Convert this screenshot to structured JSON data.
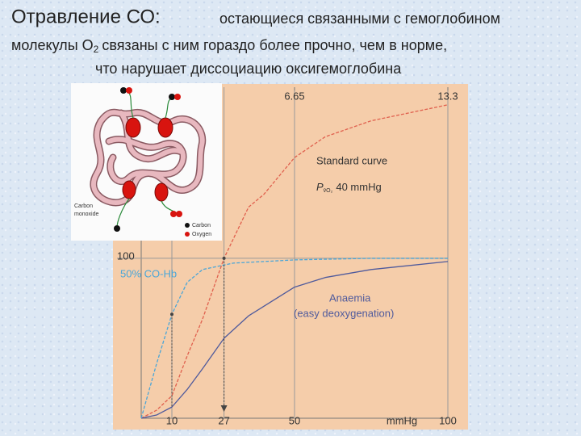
{
  "slide": {
    "heading": "Отравление СО:",
    "line1": "остающиеся связанными с гемоглобином",
    "line2a": "молекулы O",
    "line2sub": "2",
    "line2b": "связаны с ним гораздо более прочно, чем в норме,",
    "line3": "что нарушает диссоциацию оксигемоглобина"
  },
  "inset": {
    "label_co_1": "Carbon",
    "label_co_2": "monoxide",
    "legend_carbon": "Carbon",
    "legend_oxygen": "Oxygen"
  },
  "chart_data": {
    "type": "line",
    "xlabel": "mmHg",
    "xlim": [
      0,
      100
    ],
    "xticks": [
      10,
      27,
      50,
      100
    ],
    "x2ticks": [
      {
        "value": 50,
        "label": "6.65"
      },
      {
        "value": 100,
        "label": "13.3"
      }
    ],
    "ylim": [
      0,
      207
    ],
    "yticks": [
      100
    ],
    "grid": true,
    "annotation_p": "P",
    "annotation_p_sub": "v̄O₂",
    "annotation_p_rest": "40 mmHg",
    "series": [
      {
        "name": "Standard curve",
        "color": "#e0604e",
        "dashed": true,
        "x": [
          0,
          5,
          10,
          15,
          20,
          27,
          35,
          40,
          50,
          60,
          75,
          100
        ],
        "values": [
          0,
          5,
          14,
          39,
          62,
          100,
          132,
          140,
          163,
          176,
          186,
          196
        ]
      },
      {
        "name": "Anaemia",
        "note": "(easy deoxygenation)",
        "color": "#4f5a9c",
        "dashed": false,
        "x": [
          0,
          5,
          10,
          15,
          20,
          27,
          35,
          40,
          50,
          60,
          75,
          100
        ],
        "values": [
          0,
          2,
          7,
          18,
          31,
          50,
          64,
          70,
          82,
          88,
          93,
          98
        ]
      },
      {
        "name": "50% CO-Hb",
        "color": "#4aa6d8",
        "dashed": true,
        "x": [
          0,
          5,
          10,
          15,
          20,
          30,
          50,
          75,
          100
        ],
        "values": [
          0,
          34,
          65,
          85,
          93,
          97,
          99,
          100,
          100
        ]
      }
    ]
  }
}
